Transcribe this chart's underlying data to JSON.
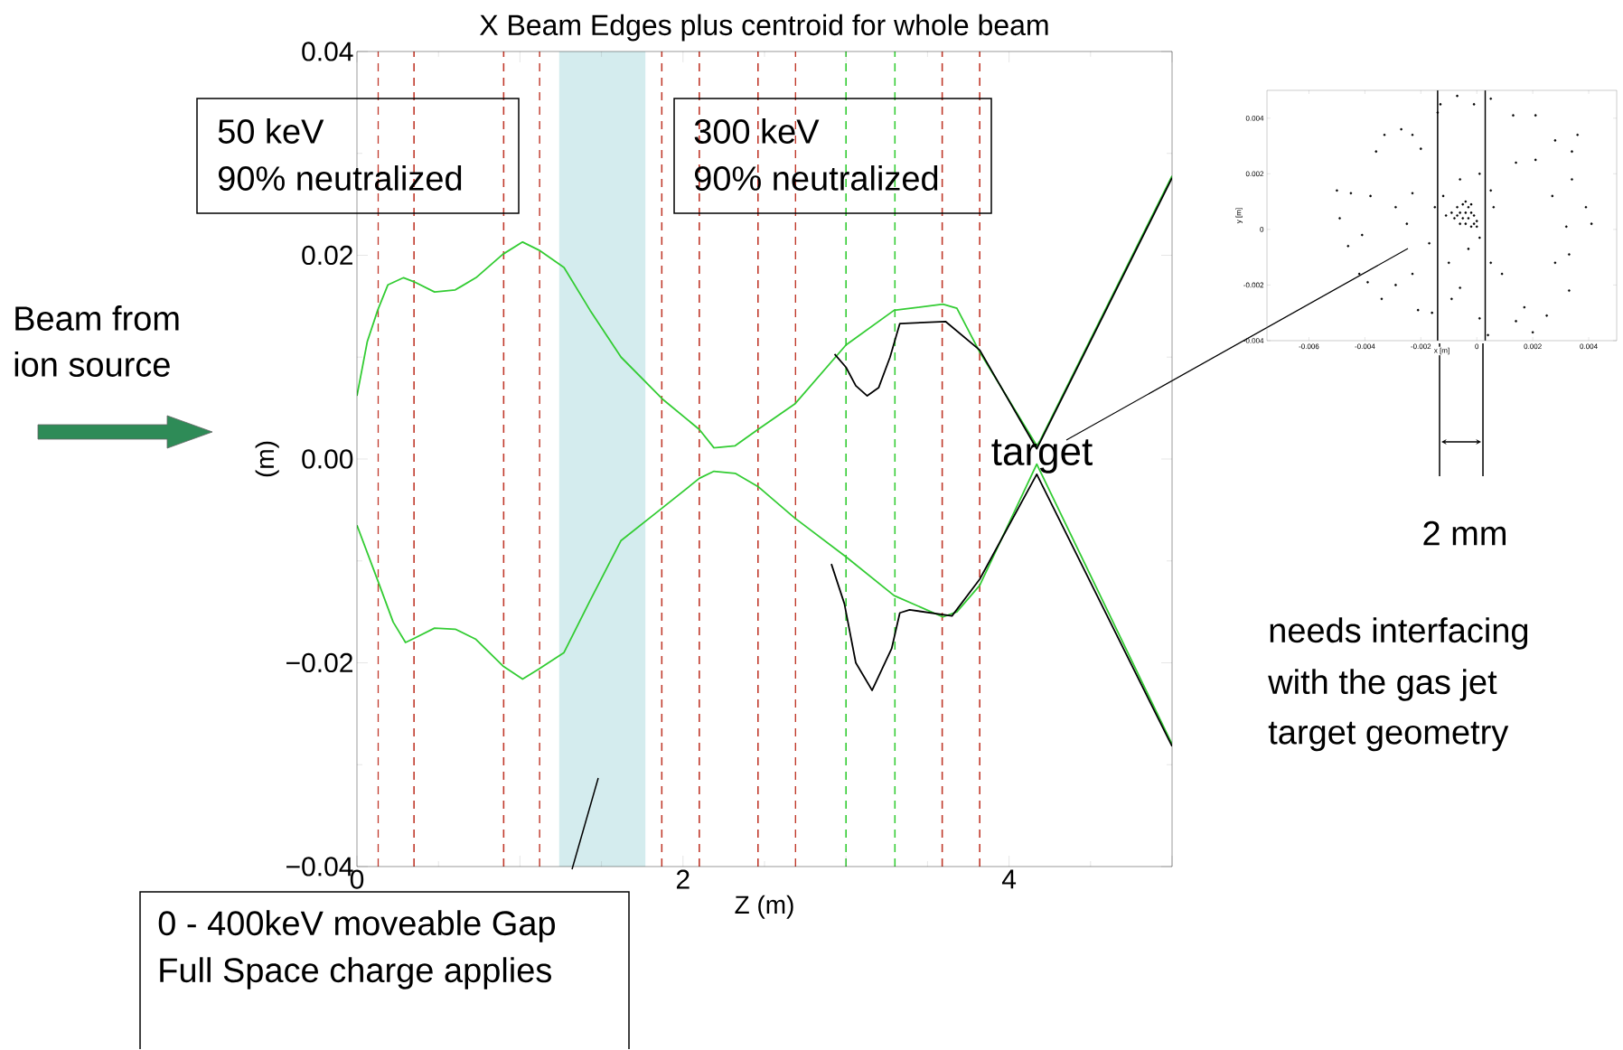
{
  "chart_data": [
    {
      "type": "line",
      "title": "X Beam Edges plus centroid for whole beam",
      "xlabel": "Z (m)",
      "ylabel": "(m)",
      "xlim": [
        0,
        5
      ],
      "ylim": [
        -0.04,
        0.04
      ],
      "xticks": [
        0,
        {
          "value": 1,
          "label": null
        },
        2,
        {
          "value": 3,
          "label": null
        },
        4,
        {
          "value": 5,
          "label": null
        }
      ],
      "yticks": [
        {
          "value": -0.04,
          "label": "−0.04"
        },
        {
          "value": -0.02,
          "label": "−0.02"
        },
        {
          "value": 0,
          "label": "0.00"
        },
        {
          "value": 0.02,
          "label": "0.02"
        },
        {
          "value": 0.04,
          "label": "0.04"
        }
      ],
      "grid": false,
      "marker": "none",
      "line_style": "solid",
      "series": [
        {
          "color": "#33cc33",
          "x": [
            0,
            0.063,
            0.127,
            0.19,
            0.286,
            0.35,
            0.476,
            0.603,
            0.73,
            0.895,
            1.016,
            1.117,
            1.27,
            1.43,
            1.62,
            1.873,
            2.1,
            2.19,
            2.32,
            2.46,
            2.686,
            3.0,
            3.295,
            3.594,
            3.68,
            3.82,
            4.17,
            4.19,
            5.0
          ],
          "values": [
            0.0062,
            0.0115,
            0.0146,
            0.0171,
            0.0178,
            0.0174,
            0.0164,
            0.0166,
            0.0178,
            0.0201,
            0.0213,
            0.0205,
            0.0188,
            0.0146,
            0.01,
            0.0059,
            0.0029,
            0.0011,
            0.0013,
            0.0029,
            0.0054,
            0.0112,
            0.0146,
            0.0152,
            0.0148,
            0.0105,
            0.0013,
            0.0018,
            0.0278
          ]
        },
        {
          "color": "#33cc33",
          "x": [
            0,
            0.127,
            0.222,
            0.298,
            0.35,
            0.476,
            0.603,
            0.73,
            0.895,
            1.016,
            1.117,
            1.27,
            1.43,
            1.62,
            1.873,
            2.1,
            2.19,
            2.32,
            2.46,
            2.686,
            3.0,
            3.295,
            3.594,
            3.68,
            3.82,
            4.17,
            5.0
          ],
          "values": [
            -0.0065,
            -0.0119,
            -0.016,
            -0.018,
            -0.0176,
            -0.0166,
            -0.0167,
            -0.0177,
            -0.0203,
            -0.0216,
            -0.0206,
            -0.019,
            -0.0139,
            -0.008,
            -0.0048,
            -0.0019,
            -0.0012,
            -0.0014,
            -0.0027,
            -0.0058,
            -0.0096,
            -0.0134,
            -0.0155,
            -0.015,
            -0.0124,
            -0.0005,
            -0.028
          ]
        },
        {
          "color": "#000000",
          "x": [
            2.93,
            3.0,
            3.06,
            3.13,
            3.2,
            3.27,
            3.33,
            3.61,
            3.82,
            4.17,
            5.0
          ],
          "values": [
            0.0103,
            0.009,
            0.0072,
            0.0062,
            0.007,
            0.01,
            0.0133,
            0.0135,
            0.0107,
            0.001,
            0.0276
          ]
        },
        {
          "color": "#000000",
          "x": [
            2.91,
            2.99,
            3.06,
            3.16,
            3.28,
            3.33,
            3.39,
            3.65,
            3.82,
            4.17,
            5.0
          ],
          "values": [
            -0.0103,
            -0.0142,
            -0.02,
            -0.0227,
            -0.0186,
            -0.0151,
            -0.0148,
            -0.0154,
            -0.0118,
            -0.0015,
            -0.0282
          ]
        }
      ],
      "ref_lines": [
        {
          "axis": "x",
          "value": 0.13,
          "color": "#c0392b",
          "line_style": "dashed"
        },
        {
          "axis": "x",
          "value": 0.35,
          "color": "#c0392b",
          "line_style": "dashed"
        },
        {
          "axis": "x",
          "value": 0.9,
          "color": "#c0392b",
          "line_style": "dashed"
        },
        {
          "axis": "x",
          "value": 1.12,
          "color": "#c0392b",
          "line_style": "dashed"
        },
        {
          "axis": "x",
          "value": 1.87,
          "color": "#c0392b",
          "line_style": "dashed"
        },
        {
          "axis": "x",
          "value": 2.1,
          "color": "#c0392b",
          "line_style": "dashed"
        },
        {
          "axis": "x",
          "value": 2.46,
          "color": "#c0392b",
          "line_style": "dashed"
        },
        {
          "axis": "x",
          "value": 2.69,
          "color": "#c0392b",
          "line_style": "dashed"
        },
        {
          "axis": "x",
          "value": 3.0,
          "color": "#33cc33",
          "line_style": "dashed"
        },
        {
          "axis": "x",
          "value": 3.3,
          "color": "#33cc33",
          "line_style": "dashed"
        },
        {
          "axis": "x",
          "value": 3.59,
          "color": "#c0392b",
          "line_style": "dashed"
        },
        {
          "axis": "x",
          "value": 3.82,
          "color": "#c0392b",
          "line_style": "dashed"
        }
      ],
      "bands": [
        {
          "axis": "x",
          "from": 1.24,
          "to": 1.77,
          "color": "#d4ecee"
        }
      ],
      "annotations": [
        "50 keV",
        "90%  neutralized",
        "300 keV",
        "90% neutralized",
        "Beam from",
        "ion source",
        "0 - 400keV moveable Gap",
        "Full Space charge applies",
        "target",
        "2 mm",
        "needs interfacing",
        "with the gas jet",
        "target geometry"
      ]
    },
    {
      "type": "scatter",
      "xlabel": "x [m]",
      "ylabel": "y [m]",
      "xlim": [
        -0.0075,
        0.005
      ],
      "ylim": [
        -0.004,
        0.005
      ],
      "xticks": [
        -0.006,
        -0.004,
        -0.002,
        0,
        0.002,
        0.004
      ],
      "yticks": [
        -0.004,
        -0.002,
        0,
        0.002,
        0.004
      ],
      "grid": false,
      "marker": "circle",
      "color": "#000000",
      "ref_lines": [
        {
          "axis": "x",
          "value": -0.0014,
          "color": "#000000"
        },
        {
          "axis": "x",
          "value": 0.0003,
          "color": "#000000"
        }
      ],
      "x": [
        -0.005,
        -0.0045,
        -0.0038,
        -0.0036,
        -0.0033,
        -0.0027,
        -0.0023,
        -0.002,
        -0.0029,
        -0.0025,
        -0.0023,
        -0.0049,
        -0.0046,
        -0.0041,
        -0.0039,
        -0.0042,
        -0.0034,
        -0.0029,
        -0.0023,
        -0.0021,
        -0.0016,
        -0.0009,
        -0.0014,
        -0.0013,
        -0.0007,
        -0.0001,
        0.0005,
        0.0013,
        0.0021,
        0.0028,
        0.0034,
        0.0036,
        0.0039,
        0.0041,
        0.0032,
        0.0027,
        0.0034,
        0.0021,
        0.0014,
        0.0033,
        0.0028,
        0.0033,
        0.0025,
        0.0017,
        0.0014,
        0.002,
        0.0004,
        0.0001,
        -0.0006,
        -0.001,
        -0.0017,
        -0.0015,
        -0.0012,
        -0.0006,
        0.0001,
        0.0005,
        0.0006,
        0.0001,
        -0.0003,
        0.0005,
        0.0009,
        -0.0011,
        -0.0009,
        -0.0008,
        -0.0007,
        -0.0006,
        -0.0006,
        -0.0005,
        -0.0005,
        -0.0004,
        -0.0004,
        -0.0004,
        -0.0003,
        -0.0003,
        -0.0002,
        -0.0002,
        -0.0001,
        -0.0001,
        0.0,
        0.0,
        -0.0007,
        -0.0002
      ],
      "values": [
        0.0014,
        0.0013,
        0.0012,
        0.0028,
        0.0034,
        0.0036,
        0.0034,
        0.0029,
        0.0008,
        0.0002,
        0.0013,
        0.0004,
        -0.0006,
        -0.0002,
        -0.0019,
        -0.0016,
        -0.0025,
        -0.002,
        -0.0016,
        -0.0029,
        -0.003,
        -0.0025,
        0.0042,
        0.0045,
        0.0048,
        0.0045,
        0.0047,
        0.0041,
        0.0041,
        0.0032,
        0.0028,
        0.0034,
        0.0008,
        0.0002,
        0.0001,
        0.0012,
        0.0018,
        0.0025,
        0.0024,
        -0.0009,
        -0.0012,
        -0.0022,
        -0.0031,
        -0.0028,
        -0.0033,
        -0.0037,
        -0.0038,
        -0.0032,
        -0.0021,
        -0.0012,
        -0.0005,
        0.0008,
        0.0012,
        0.0018,
        0.002,
        0.0014,
        0.0008,
        -0.0003,
        -0.0007,
        -0.0012,
        -0.0016,
        0.0005,
        0.0006,
        0.0004,
        0.0008,
        0.0002,
        0.0006,
        0.0009,
        0.0004,
        0.001,
        0.0006,
        0.0002,
        0.0008,
        0.0004,
        0.0006,
        0.0001,
        0.0005,
        0.0002,
        0.0003,
        0.0001,
        0.0005,
        0.0009
      ]
    }
  ]
}
